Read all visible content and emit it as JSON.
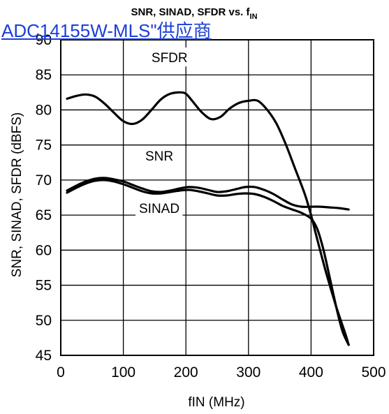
{
  "overlay": {
    "link_text": "ADC14155W-MLS\"供应商"
  },
  "chart_data": {
    "type": "line",
    "title": "SNR, SINAD, SFDR vs. f",
    "title_subscript": "IN",
    "xlabel": "fIN (MHz)",
    "ylabel": "SNR, SINAD, SFDR (dBFS)",
    "xlim": [
      0,
      500
    ],
    "ylim": [
      45,
      90
    ],
    "xticks": [
      0,
      100,
      200,
      300,
      400,
      500
    ],
    "yticks": [
      45,
      50,
      55,
      60,
      65,
      70,
      75,
      80,
      85,
      90
    ],
    "grid": true,
    "annotations": [
      {
        "text": "SFDR",
        "x": 145,
        "y": 86.8
      },
      {
        "text": "SNR",
        "x": 135,
        "y": 72.8
      },
      {
        "text": "SINAD",
        "x": 125,
        "y": 65.3
      }
    ],
    "series": [
      {
        "name": "SFDR",
        "x": [
          10,
          25,
          40,
          55,
          70,
          85,
          100,
          115,
          130,
          145,
          160,
          175,
          190,
          200,
          210,
          225,
          240,
          255,
          270,
          285,
          300,
          315,
          330,
          345,
          360,
          375,
          390,
          400,
          410,
          425,
          440,
          455,
          460
        ],
        "y": [
          81.6,
          82.0,
          82.2,
          81.9,
          80.9,
          79.6,
          78.4,
          78.0,
          78.6,
          80.0,
          81.5,
          82.3,
          82.5,
          82.3,
          81.3,
          79.7,
          78.7,
          79.0,
          80.2,
          81.0,
          81.3,
          81.3,
          80.0,
          78.0,
          75.0,
          71.5,
          68.0,
          65.0,
          61.5,
          56.5,
          52.0,
          48.0,
          46.5
        ]
      },
      {
        "name": "SNR",
        "x": [
          10,
          25,
          40,
          55,
          70,
          85,
          100,
          115,
          130,
          145,
          160,
          175,
          190,
          205,
          220,
          235,
          250,
          265,
          280,
          295,
          310,
          325,
          340,
          355,
          370,
          385,
          400,
          415,
          430,
          445,
          460
        ],
        "y": [
          68.5,
          69.2,
          69.8,
          70.2,
          70.3,
          70.1,
          69.8,
          69.3,
          68.8,
          68.4,
          68.3,
          68.5,
          68.8,
          69.0,
          68.9,
          68.6,
          68.3,
          68.4,
          68.7,
          69.0,
          69.0,
          68.6,
          68.0,
          67.2,
          66.5,
          66.2,
          66.2,
          66.2,
          66.1,
          66.0,
          65.8
        ]
      },
      {
        "name": "SINAD",
        "x": [
          10,
          25,
          40,
          55,
          70,
          85,
          100,
          115,
          130,
          145,
          160,
          175,
          190,
          205,
          220,
          235,
          250,
          265,
          280,
          295,
          310,
          325,
          340,
          355,
          370,
          385,
          400,
          410,
          420,
          430,
          440,
          450,
          460
        ],
        "y": [
          68.2,
          68.9,
          69.5,
          69.9,
          70.0,
          69.8,
          69.4,
          68.9,
          68.4,
          68.1,
          68.1,
          68.3,
          68.5,
          68.6,
          68.4,
          68.1,
          67.8,
          67.8,
          68.0,
          68.1,
          68.0,
          67.6,
          67.0,
          66.3,
          65.8,
          65.3,
          64.5,
          63.0,
          60.0,
          56.0,
          52.0,
          48.5,
          46.5
        ]
      }
    ]
  }
}
